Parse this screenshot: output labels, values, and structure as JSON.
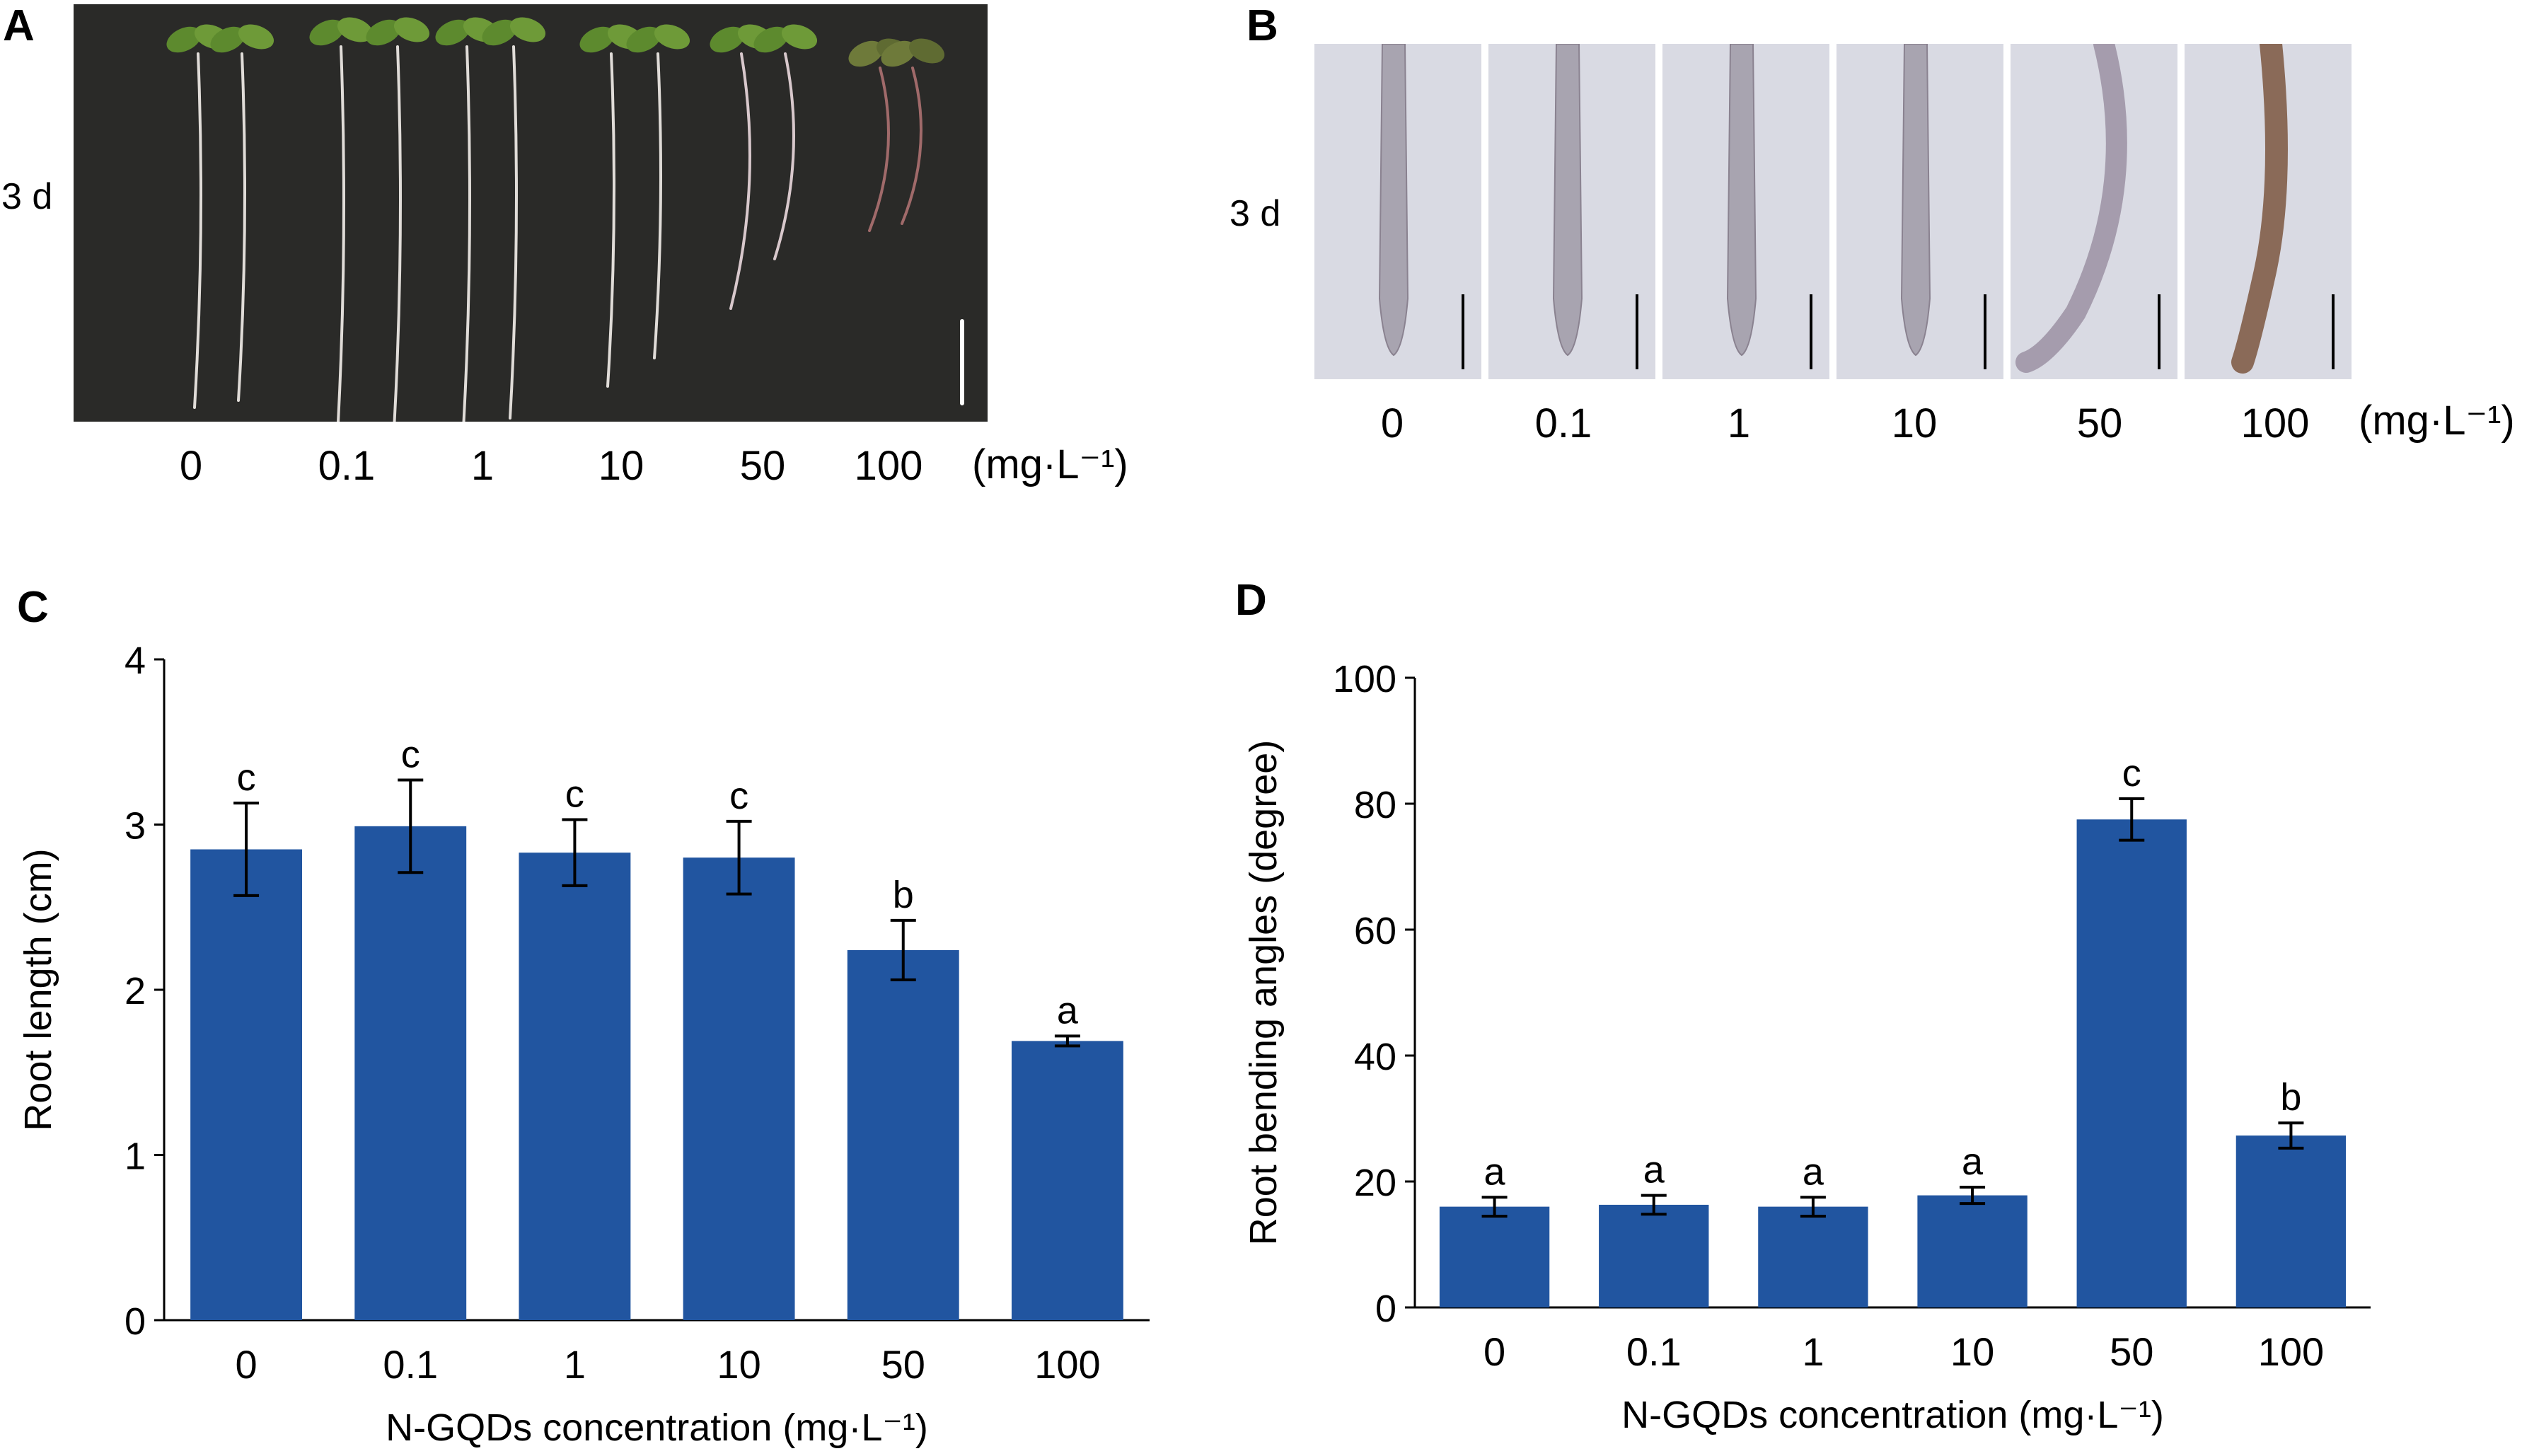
{
  "panels": {
    "A": {
      "letter": "A",
      "timepoint": "3 d",
      "unit": "(mg·L⁻¹)"
    },
    "B": {
      "letter": "B",
      "timepoint": "3 d",
      "unit": "(mg·L⁻¹)"
    },
    "C": {
      "letter": "C"
    },
    "D": {
      "letter": "D"
    }
  },
  "concentrations": [
    "0",
    "0.1",
    "1",
    "10",
    "50",
    "100"
  ],
  "colors": {
    "bar": "#2155a0",
    "photo_bg": "#2a2a28",
    "micro_bg": "#d9dae3"
  },
  "chart_data": [
    {
      "type": "bar",
      "panel": "C",
      "categories": [
        "0",
        "0.1",
        "1",
        "10",
        "50",
        "100"
      ],
      "values": [
        2.85,
        2.99,
        2.83,
        2.8,
        2.24,
        1.69
      ],
      "errors": [
        0.28,
        0.28,
        0.2,
        0.22,
        0.18,
        0.03
      ],
      "letters": [
        "c",
        "c",
        "c",
        "c",
        "b",
        "a"
      ],
      "xlabel": "N-GQDs concentration (mg·L⁻¹)",
      "ylabel": "Root length (cm)",
      "ylim": [
        0,
        4
      ],
      "yticks": [
        "0",
        "1",
        "2",
        "3",
        "4"
      ],
      "grid": false
    },
    {
      "type": "bar",
      "panel": "D",
      "categories": [
        "0",
        "0.1",
        "1",
        "10",
        "50",
        "100"
      ],
      "values": [
        16.0,
        16.3,
        16.0,
        17.8,
        77.5,
        27.3
      ],
      "errors": [
        1.5,
        1.5,
        1.5,
        1.3,
        3.3,
        2.0
      ],
      "letters": [
        "a",
        "a",
        "a",
        "a",
        "c",
        "b"
      ],
      "xlabel": "N-GQDs concentration (mg·L⁻¹)",
      "ylabel": "Root bending angles (degree)",
      "ylim": [
        0,
        100
      ],
      "yticks": [
        "0",
        "20",
        "40",
        "60",
        "80",
        "100"
      ],
      "grid": false
    }
  ]
}
